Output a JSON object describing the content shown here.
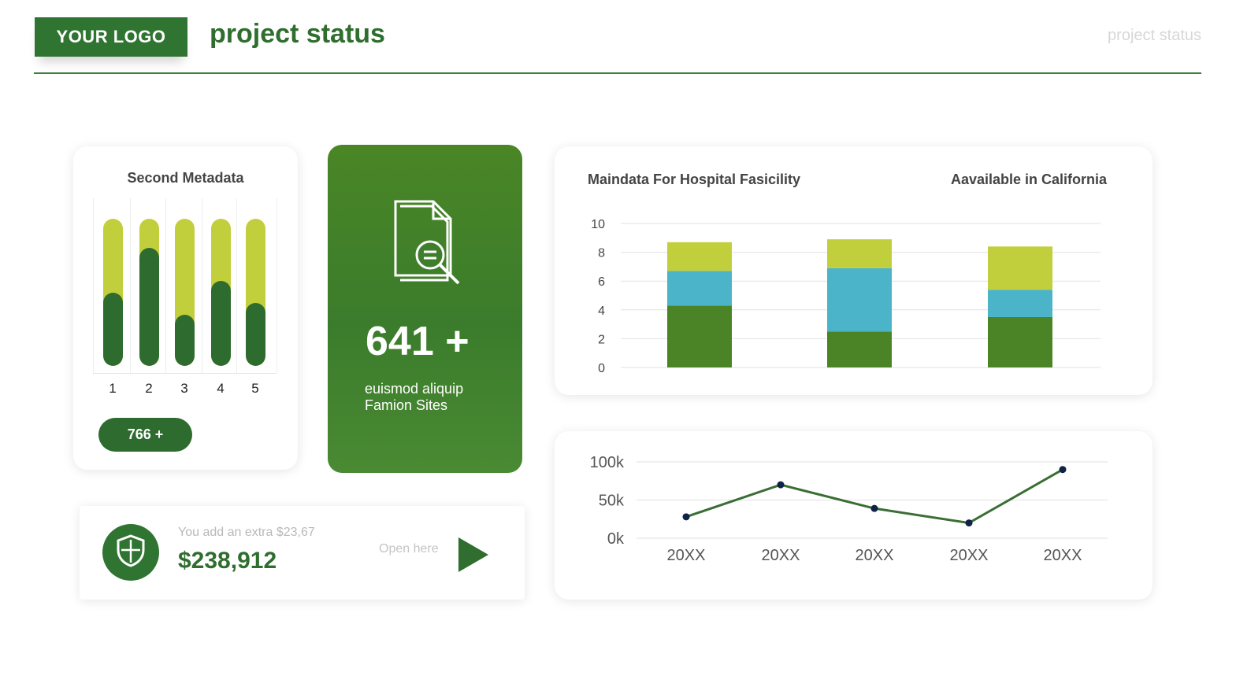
{
  "header": {
    "logo": "YOUR LOGO",
    "title": "project status",
    "right_label": "project status",
    "accent_color": "#2f7430"
  },
  "meta_card": {
    "title": "Second Metadata",
    "badge": "766 +",
    "bars": [
      {
        "label": "1",
        "value": 0.5
      },
      {
        "label": "2",
        "value": 0.8
      },
      {
        "label": "3",
        "value": 0.35
      },
      {
        "label": "4",
        "value": 0.58
      },
      {
        "label": "5",
        "value": 0.43
      }
    ],
    "colors": {
      "track": "#c2cf3c",
      "fill": "#2e6b2f"
    }
  },
  "green_card": {
    "icon": "document-search-icon",
    "number": "641 +",
    "description": "euismod aliquip Famion Sites"
  },
  "price_card": {
    "icon": "shield-icon",
    "note": "You add an extra $23,67",
    "value": "$238,912",
    "link": "Open here",
    "button_icon": "play-icon"
  },
  "chart_data": [
    {
      "type": "bar",
      "stacked": true,
      "title": "Maindata For Hospital  Fasicility",
      "subtitle": "Aavailable in California",
      "categories": [
        "",
        "",
        ""
      ],
      "series": [
        {
          "color": "#4a8426",
          "values": [
            4.3,
            2.5,
            3.5
          ]
        },
        {
          "color": "#4bb4c8",
          "values": [
            2.4,
            4.4,
            1.9
          ]
        },
        {
          "color": "#c2cf3c",
          "values": [
            2.0,
            2.0,
            3.0
          ]
        }
      ],
      "ylim": [
        0,
        10
      ],
      "yticks": [
        "0",
        "2",
        "4",
        "6",
        "8",
        "10"
      ],
      "grid": true
    },
    {
      "type": "line",
      "categories": [
        "20XX",
        "20XX",
        "20XX",
        "20XX",
        "20XX"
      ],
      "series": [
        {
          "color": "#3a6e34",
          "marker_color": "#0f2248",
          "values": [
            28000,
            70000,
            39000,
            20000,
            90000
          ]
        }
      ],
      "ylim": [
        0,
        100000
      ],
      "yticks": [
        "0k",
        "50k",
        "100k"
      ],
      "grid": true
    }
  ]
}
